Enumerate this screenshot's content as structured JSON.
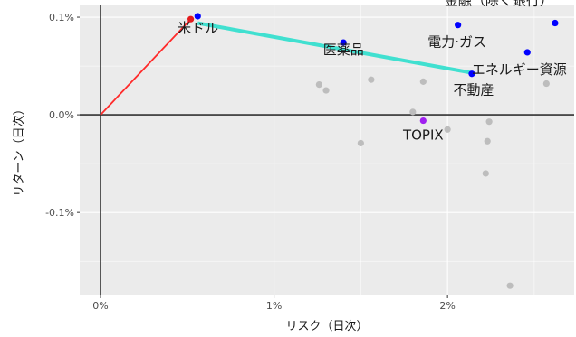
{
  "chart_data": {
    "type": "scatter",
    "title": "",
    "xlabel": "リスク（日次）",
    "ylabel": "リターン（日次）",
    "xlim": [
      -0.12,
      2.73
    ],
    "ylim": [
      -0.185,
      0.113
    ],
    "x_ticks": [
      {
        "value": 0,
        "label": "0%"
      },
      {
        "value": 1,
        "label": "1%"
      },
      {
        "value": 2,
        "label": "2%"
      }
    ],
    "y_ticks": [
      {
        "value": -0.1,
        "label": "-0.1%"
      },
      {
        "value": 0,
        "label": "0.0%"
      },
      {
        "value": 0.1,
        "label": "0.1%"
      }
    ],
    "grid": true,
    "legend": "none",
    "colors": {
      "panel_bg": "#ebebeb",
      "grid": "#ffffff",
      "axis_line": "#333333",
      "gray_point": "#bdbdbd",
      "blue_point": "#0000ff",
      "red_point": "#e41a1c",
      "purple_point": "#a020f0",
      "red_line": "#ff2a2a",
      "cyan_line": "#40e0d0"
    },
    "points": [
      {
        "x": 0.52,
        "y": 0.098,
        "color": "red",
        "label": "米ドル"
      },
      {
        "x": 0.56,
        "y": 0.101,
        "color": "blue",
        "label": ""
      },
      {
        "x": 1.4,
        "y": 0.074,
        "color": "blue",
        "label": "医薬品"
      },
      {
        "x": 2.06,
        "y": 0.092,
        "color": "blue",
        "label": "電力·ガス"
      },
      {
        "x": 2.14,
        "y": 0.042,
        "color": "blue",
        "label": "不動産"
      },
      {
        "x": 2.46,
        "y": 0.064,
        "color": "blue",
        "label": "エネルギー資源"
      },
      {
        "x": 2.62,
        "y": 0.094,
        "color": "blue",
        "label": "金融（除く銀行）"
      },
      {
        "x": 1.86,
        "y": -0.006,
        "color": "purple",
        "label": "TOPIX"
      },
      {
        "x": 1.26,
        "y": 0.031,
        "color": "gray",
        "label": ""
      },
      {
        "x": 1.3,
        "y": 0.025,
        "color": "gray",
        "label": ""
      },
      {
        "x": 1.5,
        "y": -0.029,
        "color": "gray",
        "label": ""
      },
      {
        "x": 1.56,
        "y": 0.036,
        "color": "gray",
        "label": ""
      },
      {
        "x": 1.8,
        "y": 0.003,
        "color": "gray",
        "label": ""
      },
      {
        "x": 1.86,
        "y": 0.034,
        "color": "gray",
        "label": ""
      },
      {
        "x": 2.0,
        "y": -0.015,
        "color": "gray",
        "label": ""
      },
      {
        "x": 2.24,
        "y": -0.007,
        "color": "gray",
        "label": ""
      },
      {
        "x": 2.23,
        "y": -0.027,
        "color": "gray",
        "label": ""
      },
      {
        "x": 2.22,
        "y": -0.06,
        "color": "gray",
        "label": ""
      },
      {
        "x": 2.36,
        "y": -0.175,
        "color": "gray",
        "label": ""
      },
      {
        "x": 2.57,
        "y": 0.032,
        "color": "gray",
        "label": ""
      }
    ],
    "lines": [
      {
        "name": "",
        "color": "red",
        "points": [
          [
            0,
            0
          ],
          [
            0.52,
            0.098
          ]
        ]
      },
      {
        "name": "",
        "color": "cyan",
        "points": [
          [
            0.56,
            0.094
          ],
          [
            2.14,
            0.043
          ]
        ]
      }
    ]
  }
}
